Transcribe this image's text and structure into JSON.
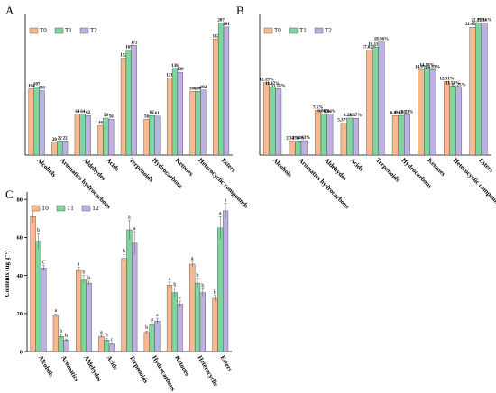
{
  "panels": [
    {
      "letter": "A",
      "chart_data": {
        "type": "bar",
        "categories": [
          "Alcohols",
          "Aromatics hydrocarbons",
          "Aldehydes",
          "Acids",
          "Terpenoids",
          "Hydrocarbons",
          "Ketones",
          "Heterocyclic compounds",
          "Esters"
        ],
        "series": [
          {
            "name": "T0",
            "values": [
              104,
              20,
              64,
              46,
              152,
              56,
              121,
              100,
              182
            ]
          },
          {
            "name": "T1",
            "values": [
              107,
              22,
              64,
              58,
              165,
              62,
              136,
              100,
              207
            ]
          },
          {
            "name": "T2",
            "values": [
              101,
              22,
              62,
              56,
              172,
              61,
              130,
              102,
              201
            ]
          }
        ],
        "data_labels": [
          [
            "104",
            "20",
            "64",
            "46",
            "152",
            "56",
            "121",
            "100",
            "182"
          ],
          [
            "107",
            "22",
            "64",
            "58",
            "165",
            "62",
            "136",
            "100",
            "207"
          ],
          [
            "101",
            "22",
            "62",
            "56",
            "172",
            "61",
            "130",
            "102",
            "201"
          ]
        ],
        "ylim": [
          0,
          215
        ],
        "legend": "top-left"
      }
    },
    {
      "letter": "B",
      "chart_data": {
        "type": "bar",
        "categories": [
          "Alcohols",
          "Aromatics hydrocarbons",
          "Aldehydes",
          "Acids",
          "Terpenoids",
          "Hydrocarbons",
          "Ketones",
          "Heterocyclic compounds",
          "Esters"
        ],
        "series": [
          {
            "name": "T0",
            "values": [
              12.19,
              2.34,
              7.5,
              5.37,
              17.62,
              6.6,
              14.3,
              12.31,
              21.45
            ]
          },
          {
            "name": "T1",
            "values": [
              11.47,
              2.36,
              6.86,
              6.22,
              18.11,
              6.65,
              14.58,
              11.58,
              22.19
            ]
          },
          {
            "name": "T2",
            "values": [
              11.14,
              2.43,
              6.84,
              6.17,
              18.96,
              6.73,
              14.33,
              11.25,
              22.16
            ]
          }
        ],
        "data_labels": [
          [
            "12.19%",
            "2.34%",
            "7.5%",
            "5.37%",
            "17.62%",
            "6.6%",
            "14.3%",
            "12.31%",
            "21.45%"
          ],
          [
            "11.47%",
            "2.36%",
            "6.86%",
            "6.22%",
            "18.11%",
            "6.65%",
            "14.58%",
            "11.58%",
            "22.19%"
          ],
          [
            "11.14%",
            "2.43%",
            "6.84%",
            "6.17%",
            "18.96%",
            "6.73%",
            "14.33%",
            "11.25%",
            "22.16%"
          ]
        ],
        "ylim": [
          0,
          23
        ],
        "legend": "top-left"
      }
    },
    {
      "letter": "C",
      "chart_data": {
        "type": "bar",
        "categories": [
          "Alcohols",
          "Aromatics",
          "Aldehydes",
          "Acids",
          "Terpenoids",
          "Hydrocarbons",
          "Ketones",
          "Heterocyclic",
          "Esters"
        ],
        "series": [
          {
            "name": "T0",
            "values": [
              71,
              19,
              43,
              8,
              49,
              10,
              35,
              46,
              28
            ],
            "errors": [
              3,
              0.8,
              1.2,
              0.6,
              2,
              0.8,
              1.5,
              1.5,
              1.5
            ],
            "letters": [
              "a",
              "a",
              "a",
              "a",
              "b",
              "b",
              "a",
              "a",
              "b"
            ]
          },
          {
            "name": "T1",
            "values": [
              58,
              8,
              38,
              6,
              64,
              14,
              31,
              36,
              65
            ],
            "errors": [
              4,
              1,
              2,
              0.8,
              5,
              1.2,
              2.5,
              2.5,
              6
            ],
            "letters": [
              "b",
              "b",
              "b",
              "b",
              "a",
              "a",
              "b",
              "b",
              "a"
            ]
          },
          {
            "name": "T2",
            "values": [
              44,
              6,
              36,
              4,
              57,
              16,
              25,
              31,
              74
            ],
            "errors": [
              1.2,
              0.6,
              1,
              0.5,
              6,
              1.5,
              1.5,
              2,
              4
            ],
            "letters": [
              "c",
              "b",
              "b",
              "c",
              "a",
              "a",
              "c",
              "b",
              "a"
            ]
          }
        ],
        "ylabel": "Contents (ug g⁻¹)",
        "yticks": [
          0,
          20,
          40,
          60,
          80
        ],
        "ylim": [
          0,
          82
        ],
        "legend": "top-left"
      }
    }
  ],
  "colors": {
    "T0": "#F9B88E",
    "T1": "#7ED69F",
    "T2": "#BDB1E4",
    "axis": "#000000"
  }
}
